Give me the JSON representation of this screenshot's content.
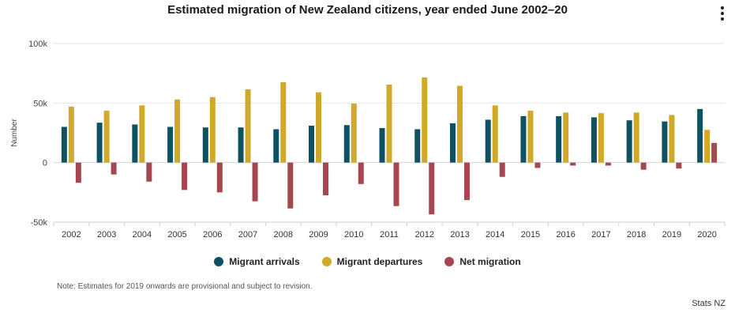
{
  "chart_data": {
    "type": "bar",
    "title": "Estimated migration of New Zealand citizens, year ended June 2002–20",
    "ylabel": "Number",
    "xlabel": "",
    "ylim": [
      -50000,
      100000
    ],
    "yticks": [
      100000,
      50000,
      0,
      -50000
    ],
    "ytick_labels": [
      "100k",
      "50k",
      "0",
      "-50k"
    ],
    "grid": true,
    "legend_position": "bottom",
    "categories": [
      "2002",
      "2003",
      "2004",
      "2005",
      "2006",
      "2007",
      "2008",
      "2009",
      "2010",
      "2011",
      "2012",
      "2013",
      "2014",
      "2015",
      "2016",
      "2017",
      "2018",
      "2019",
      "2020"
    ],
    "series": [
      {
        "name": "Migrant arrivals",
        "color": "#0d5263",
        "values": [
          30000,
          33500,
          32000,
          30000,
          29500,
          29500,
          28000,
          31000,
          31500,
          29000,
          28000,
          33000,
          36000,
          39000,
          39000,
          38000,
          35500,
          34500,
          45000
        ]
      },
      {
        "name": "Migrant departures",
        "color": "#d1a929",
        "values": [
          47000,
          43500,
          48000,
          53000,
          55000,
          61500,
          67500,
          59000,
          49500,
          65500,
          71500,
          64500,
          48000,
          43500,
          42000,
          41500,
          42000,
          40000,
          27500
        ]
      },
      {
        "name": "Net migration",
        "color": "#a6474f",
        "values": [
          -17000,
          -10000,
          -16000,
          -23000,
          -25000,
          -32500,
          -38500,
          -27500,
          -18000,
          -36500,
          -43500,
          -31500,
          -12000,
          -4500,
          -2500,
          -2500,
          -6000,
          -5000,
          16500
        ]
      }
    ]
  },
  "note": "Note: Estimates for 2019 onwards are provisional and subject to revision.",
  "credit": "Stats NZ",
  "menu_icon": "vertical-dots-icon"
}
